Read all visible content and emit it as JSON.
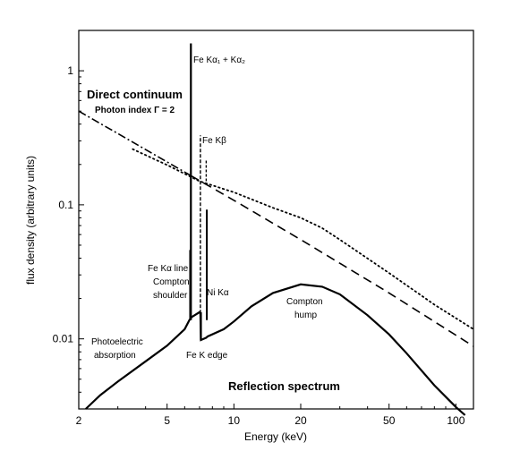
{
  "chart_data": {
    "type": "line",
    "title": "",
    "xlabel": "Energy (keV)",
    "ylabel": "flux density (arbitrary units)",
    "x_scale": "log",
    "y_scale": "log",
    "xlim": [
      2,
      120
    ],
    "ylim": [
      0.003,
      2.0
    ],
    "x_ticks": [
      2,
      5,
      10,
      20,
      50,
      100
    ],
    "x_tick_labels": [
      "2",
      "5",
      "10",
      "20",
      "50",
      "100"
    ],
    "y_ticks": [
      0.01,
      0.1,
      1
    ],
    "y_tick_labels": [
      "0.01",
      "0.1",
      "1"
    ],
    "grid": false,
    "legend": "none",
    "series": [
      {
        "key": "direct",
        "style": "dash-dot / dashed",
        "points": [
          [
            2,
            0.5
          ],
          [
            3,
            0.34
          ],
          [
            6.4,
            0.165
          ],
          [
            10,
            0.108
          ],
          [
            20,
            0.055
          ],
          [
            50,
            0.022
          ],
          [
            120,
            0.0088
          ]
        ]
      },
      {
        "key": "reflection",
        "style": "solid",
        "points": [
          [
            2.15,
            0.003
          ],
          [
            2.5,
            0.0038
          ],
          [
            3,
            0.0048
          ],
          [
            4,
            0.0068
          ],
          [
            5,
            0.0089
          ],
          [
            6,
            0.0118
          ],
          [
            6.3,
            0.0138
          ],
          [
            6.38,
            0.046
          ],
          [
            6.42,
            0.0139
          ],
          [
            6.4,
            1.6
          ],
          [
            6.44,
            0.0145
          ],
          [
            7.0,
            0.0158
          ],
          [
            7.06,
            0.0155
          ],
          [
            7.1,
            0.0098
          ],
          [
            7.5,
            0.0102
          ],
          [
            7.55,
            0.092
          ],
          [
            7.6,
            0.0104
          ],
          [
            9,
            0.0118
          ],
          [
            10,
            0.0135
          ],
          [
            12,
            0.0175
          ],
          [
            15,
            0.022
          ],
          [
            20,
            0.0255
          ],
          [
            25,
            0.0245
          ],
          [
            30,
            0.0215
          ],
          [
            40,
            0.015
          ],
          [
            50,
            0.0108
          ],
          [
            60,
            0.0078
          ],
          [
            80,
            0.0045
          ],
          [
            100,
            0.0031
          ],
          [
            110,
            0.0027
          ]
        ]
      },
      {
        "key": "total",
        "style": "dotted",
        "points": [
          [
            3.5,
            0.26
          ],
          [
            5,
            0.198
          ],
          [
            7,
            0.15
          ],
          [
            10,
            0.124
          ],
          [
            15,
            0.095
          ],
          [
            20,
            0.08
          ],
          [
            25,
            0.067
          ],
          [
            30,
            0.055
          ],
          [
            50,
            0.031
          ],
          [
            80,
            0.018
          ],
          [
            120,
            0.0118
          ]
        ]
      }
    ],
    "annotations": {
      "fe_kalpha": "Fe Kα₁ + Kα₂",
      "direct_continuum": "Direct continuum",
      "photon_index": "Photon index Γ = 2",
      "fe_kbeta": "Fe Kβ",
      "fe_line_1": "Fe Kα line",
      "fe_line_2": "Compton",
      "fe_line_3": "shoulder",
      "ni_kalpha": "Ni Kα",
      "hump_1": "Compton",
      "hump_2": "hump",
      "photo_1": "Photoelectric",
      "photo_2": "absorption",
      "fe_edge": "Fe K edge",
      "reflection": "Reflection spectrum"
    }
  }
}
